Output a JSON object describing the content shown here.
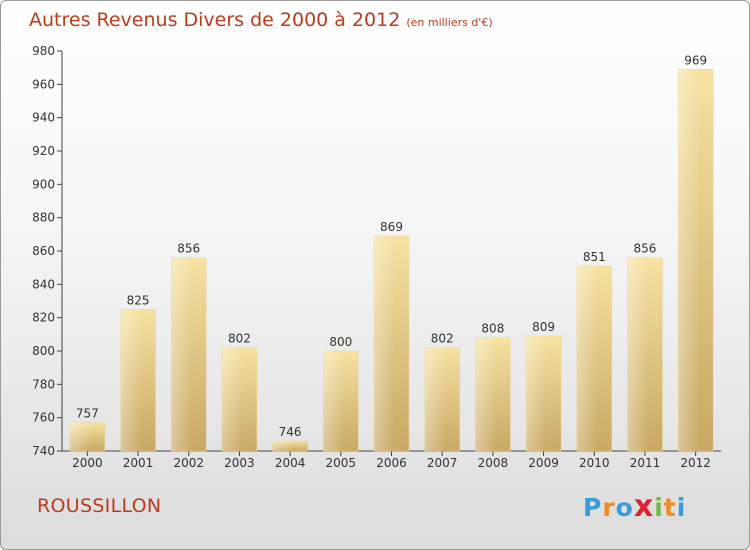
{
  "title": "Autres Revenus Divers de 2000 à 2012",
  "unit": "(en milliers d'€)",
  "commune": "ROUSSILLON",
  "logo": {
    "letters": [
      "P",
      "r",
      "o",
      "x",
      "i",
      "t",
      "i"
    ],
    "colors": [
      "#3b9ad9",
      "#f28a1e",
      "#3b9ad9",
      "#d8262f",
      "#75b843",
      "#f28a1e",
      "#3b9ad9"
    ]
  },
  "colors": {
    "title": "#bd3a1b",
    "bar_light": "#f6e2a2",
    "bar_dark": "#c8a864"
  },
  "chart_data": {
    "type": "bar",
    "categories": [
      "2000",
      "2001",
      "2002",
      "2003",
      "2004",
      "2005",
      "2006",
      "2007",
      "2008",
      "2009",
      "2010",
      "2011",
      "2012"
    ],
    "values": [
      757,
      825,
      856,
      802,
      746,
      800,
      869,
      802,
      808,
      809,
      851,
      856,
      969
    ],
    "data_labels": [
      "757",
      "825",
      "856",
      "802",
      "746",
      "800",
      "869",
      "802",
      "808",
      "809",
      "851",
      "856",
      "969"
    ],
    "ylim": [
      740,
      980
    ],
    "yticks": [
      740,
      760,
      780,
      800,
      820,
      840,
      860,
      880,
      900,
      920,
      940,
      960,
      980
    ],
    "grid": false,
    "legend": "none"
  }
}
